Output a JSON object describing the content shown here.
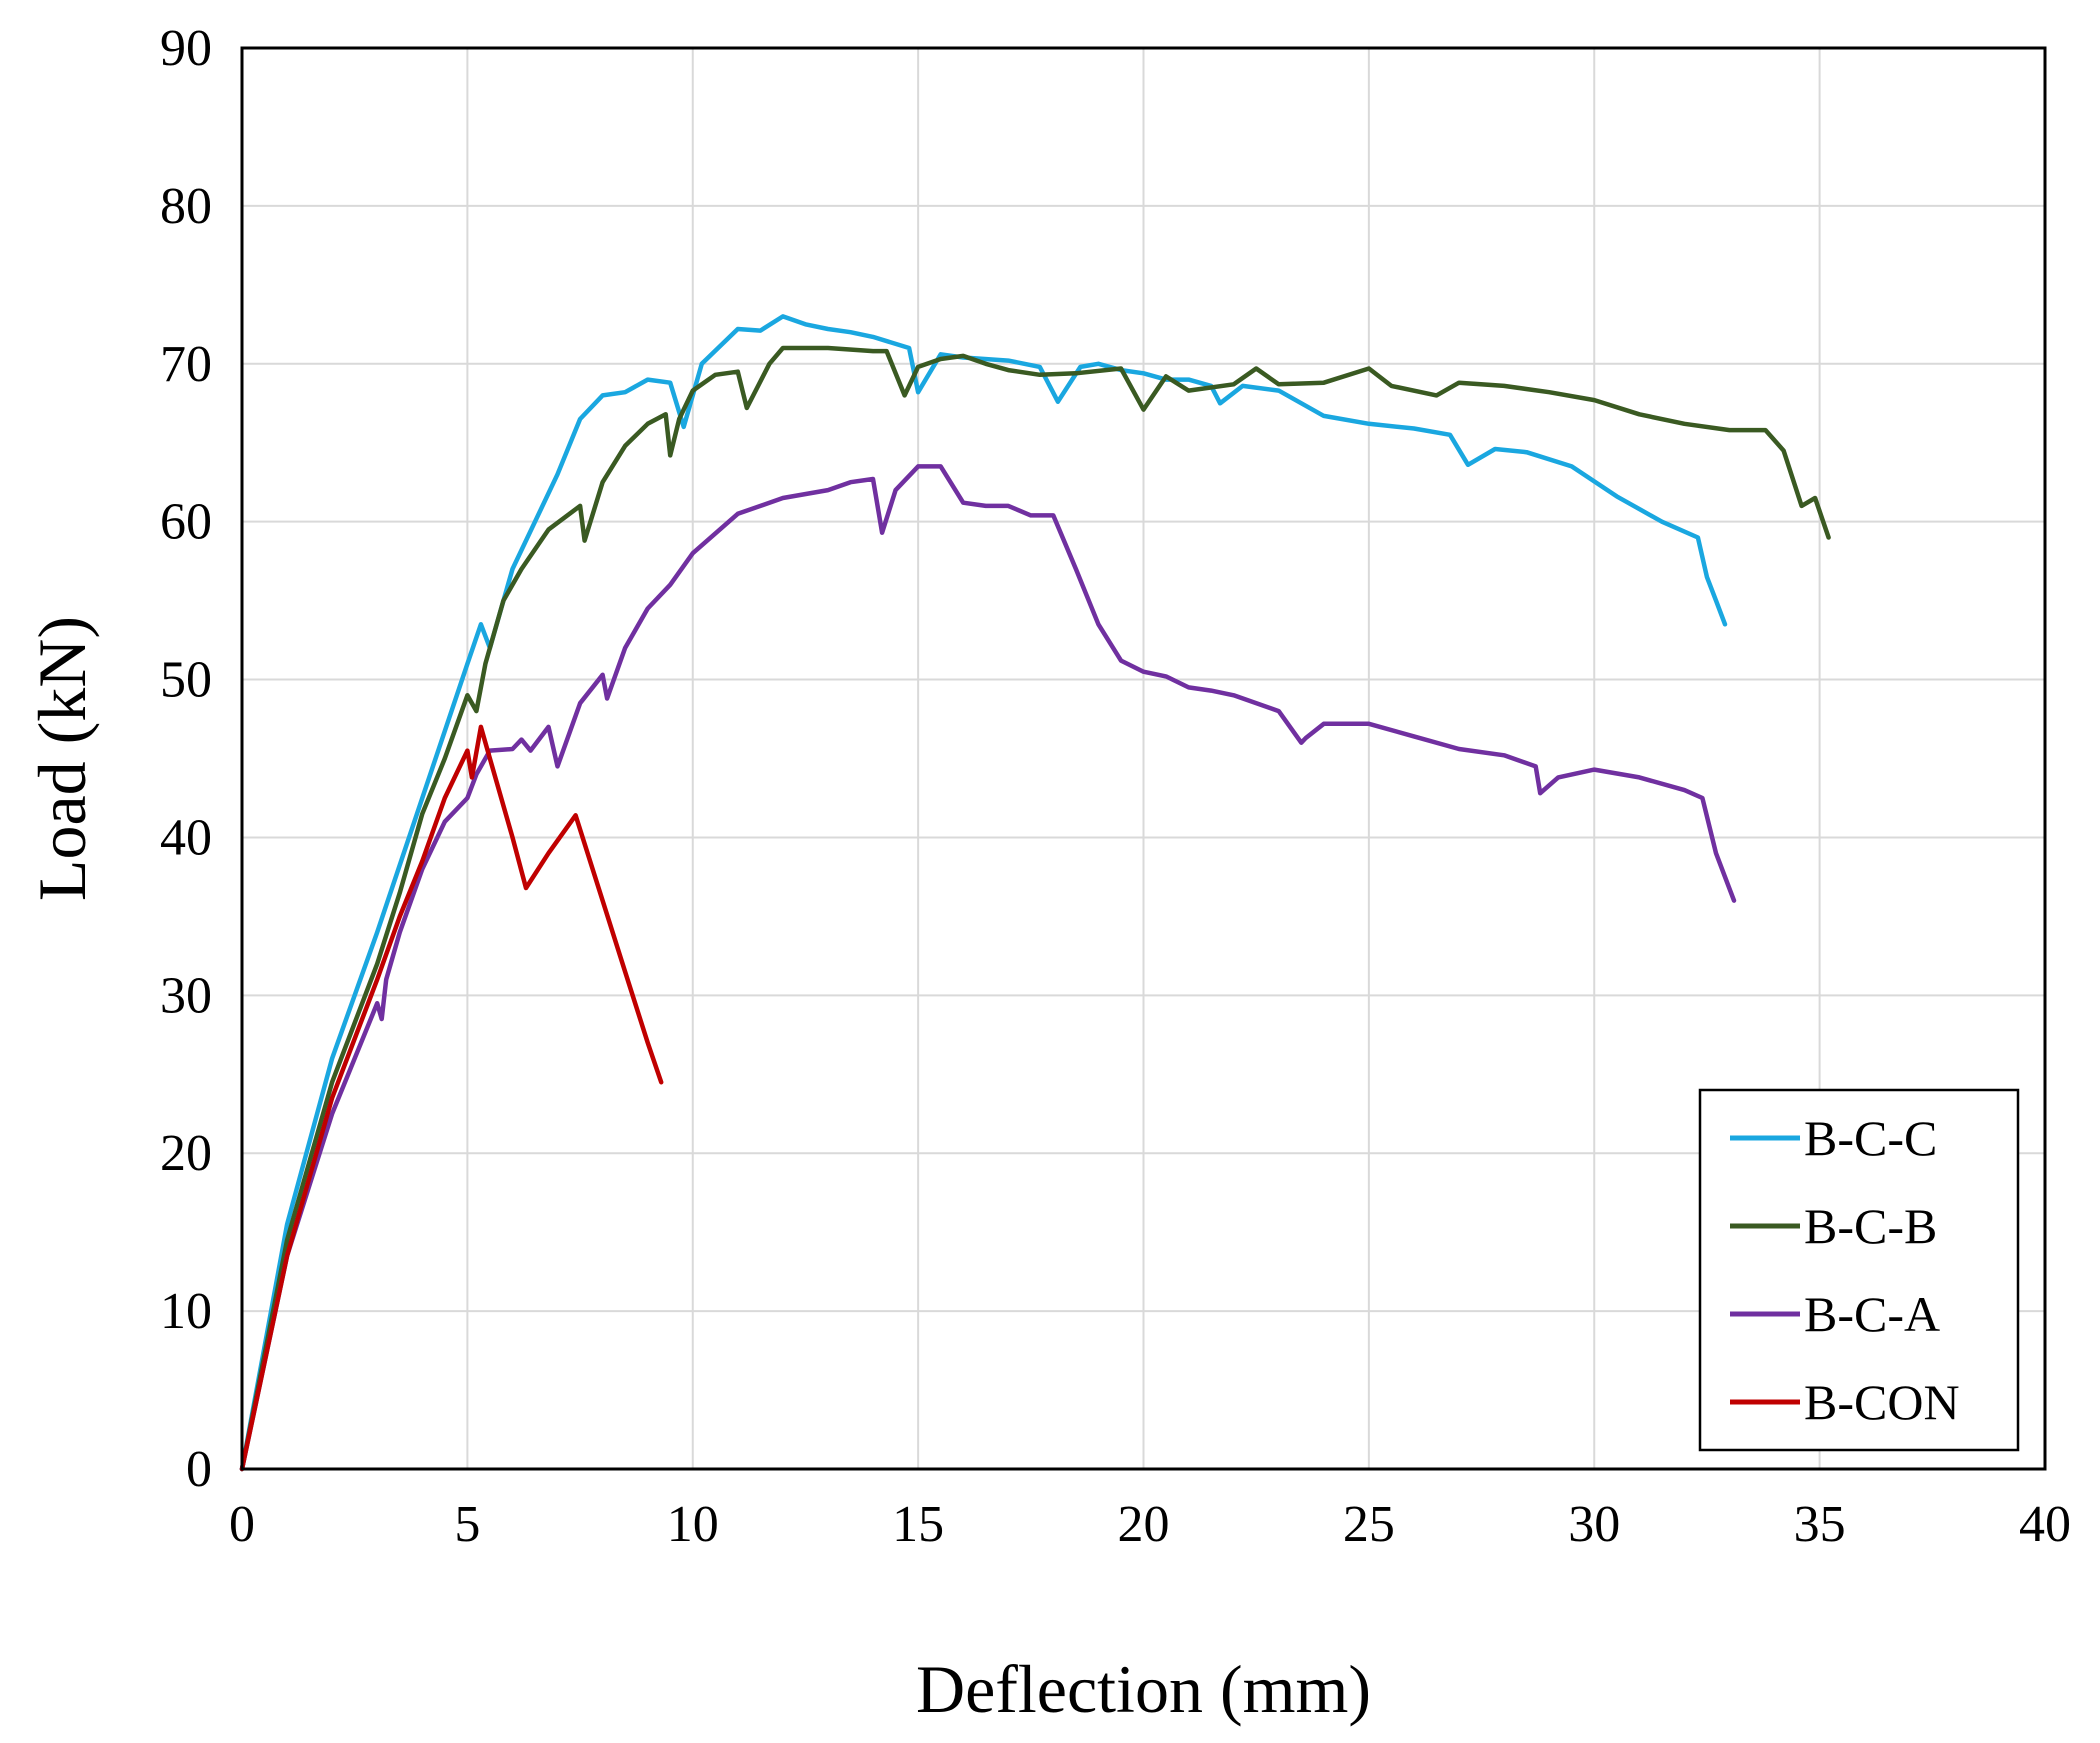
{
  "chart_data": {
    "type": "line",
    "title": "",
    "xlabel": "Deflection (mm)",
    "ylabel": "Load (kN)",
    "xlim": [
      0,
      40
    ],
    "ylim": [
      0,
      90
    ],
    "xticks": [
      0,
      5,
      10,
      15,
      20,
      25,
      30,
      35,
      40
    ],
    "yticks": [
      0,
      10,
      20,
      30,
      40,
      50,
      60,
      70,
      80,
      90
    ],
    "grid": true,
    "legend_position": "bottom-right",
    "series": [
      {
        "name": "B-C-C",
        "color": "#1aa7e0",
        "x": [
          0,
          1,
          2,
          3,
          4,
          5,
          5.3,
          5.5,
          6,
          6.5,
          7,
          7.5,
          8,
          8.5,
          9,
          9.5,
          9.8,
          10.2,
          11,
          11.5,
          12,
          12.5,
          13,
          13.5,
          14,
          14.8,
          15,
          15.5,
          16,
          17,
          17.7,
          18.1,
          18.6,
          19,
          19.5,
          20,
          20.5,
          21,
          21.5,
          21.7,
          22.2,
          23,
          24,
          25,
          26,
          26.8,
          27.2,
          27.8,
          28.5,
          29.5,
          30.5,
          31.5,
          32.3,
          32.5,
          32.7,
          32.9
        ],
        "y": [
          0,
          15.5,
          26,
          34,
          42.5,
          51,
          53.5,
          52,
          57,
          60,
          63,
          66.5,
          68,
          68.2,
          69,
          68.8,
          66,
          70,
          72.2,
          72.1,
          73,
          72.5,
          72.2,
          72,
          71.7,
          71,
          68.2,
          70.6,
          70.4,
          70.2,
          69.8,
          67.6,
          69.8,
          70,
          69.6,
          69.4,
          69,
          69,
          68.6,
          67.5,
          68.6,
          68.3,
          66.7,
          66.2,
          65.9,
          65.5,
          63.6,
          64.6,
          64.4,
          63.5,
          61.6,
          60,
          59,
          56.5,
          55,
          53.5
        ]
      },
      {
        "name": "B-C-B",
        "color": "#3a5a22",
        "x": [
          0,
          1,
          2,
          3,
          3.5,
          4,
          4.5,
          5,
          5.2,
          5.4,
          5.8,
          6.2,
          6.8,
          7.5,
          7.6,
          8,
          8.5,
          9,
          9.4,
          9.5,
          9.7,
          10,
          10.5,
          11,
          11.2,
          11.7,
          12,
          13,
          14,
          14.3,
          14.7,
          15,
          15.5,
          16,
          16.5,
          17,
          17.7,
          18.5,
          19.5,
          20,
          20.5,
          21,
          22,
          22.5,
          23,
          24,
          25,
          25.5,
          26.5,
          27,
          28,
          29,
          30,
          31,
          32,
          33,
          33.8,
          34.2,
          34.6,
          34.9,
          35.2
        ],
        "y": [
          0,
          14.5,
          24.5,
          32,
          36.5,
          41.5,
          45,
          49,
          48,
          51,
          55,
          57,
          59.5,
          61,
          58.8,
          62.5,
          64.8,
          66.2,
          66.8,
          64.2,
          66.5,
          68.3,
          69.3,
          69.5,
          67.2,
          70,
          71,
          71,
          70.8,
          70.8,
          68,
          69.8,
          70.3,
          70.5,
          70,
          69.6,
          69.3,
          69.4,
          69.7,
          67.1,
          69.2,
          68.3,
          68.7,
          69.7,
          68.7,
          68.8,
          69.7,
          68.6,
          68,
          68.8,
          68.6,
          68.2,
          67.7,
          66.8,
          66.2,
          65.8,
          65.8,
          64.5,
          61,
          61.5,
          59
        ]
      },
      {
        "name": "B-C-A",
        "color": "#7030a0",
        "x": [
          0,
          1,
          2,
          3,
          3.1,
          3.2,
          3.5,
          4,
          4.5,
          5,
          5.2,
          5.5,
          6,
          6.2,
          6.4,
          6.8,
          7,
          7.5,
          8,
          8.1,
          8.5,
          9,
          9.5,
          10,
          11,
          12,
          13,
          13.5,
          14,
          14.2,
          14.5,
          15,
          15.5,
          16,
          16.5,
          17,
          17.5,
          18,
          18.5,
          19,
          19.5,
          20,
          20.5,
          21,
          21.5,
          22,
          23,
          23.5,
          23.6,
          24,
          25,
          26,
          27,
          28,
          28.7,
          28.8,
          29.2,
          30,
          31,
          32,
          32.4,
          32.7,
          33.1
        ],
        "y": [
          0,
          13.5,
          22.5,
          29.5,
          28.5,
          31,
          34,
          38,
          41,
          42.5,
          44,
          45.5,
          45.6,
          46.2,
          45.5,
          47,
          44.5,
          48.5,
          50.3,
          48.8,
          52,
          54.5,
          56,
          58,
          60.5,
          61.5,
          62,
          62.5,
          62.7,
          59.3,
          62,
          63.5,
          63.5,
          61.2,
          61,
          61,
          60.4,
          60.4,
          57,
          53.5,
          51.2,
          50.5,
          50.2,
          49.5,
          49.3,
          49,
          48,
          46,
          46.3,
          47.2,
          47.2,
          46.4,
          45.6,
          45.2,
          44.5,
          42.8,
          43.8,
          44.3,
          43.8,
          43,
          42.5,
          39,
          36
        ]
      },
      {
        "name": "B-CON",
        "color": "#c00000",
        "x": [
          0,
          1,
          2,
          2.8,
          3,
          3.5,
          4,
          4.5,
          5,
          5.1,
          5.3,
          5.5,
          6,
          6.3,
          6.8,
          7.4,
          8,
          8.5,
          9,
          9.3
        ],
        "y": [
          0,
          13.5,
          23.5,
          29.5,
          31,
          35,
          38.5,
          42.5,
          45.5,
          43.8,
          47,
          45,
          40,
          36.8,
          39,
          41.4,
          36,
          31.5,
          27,
          24.5
        ]
      }
    ]
  }
}
